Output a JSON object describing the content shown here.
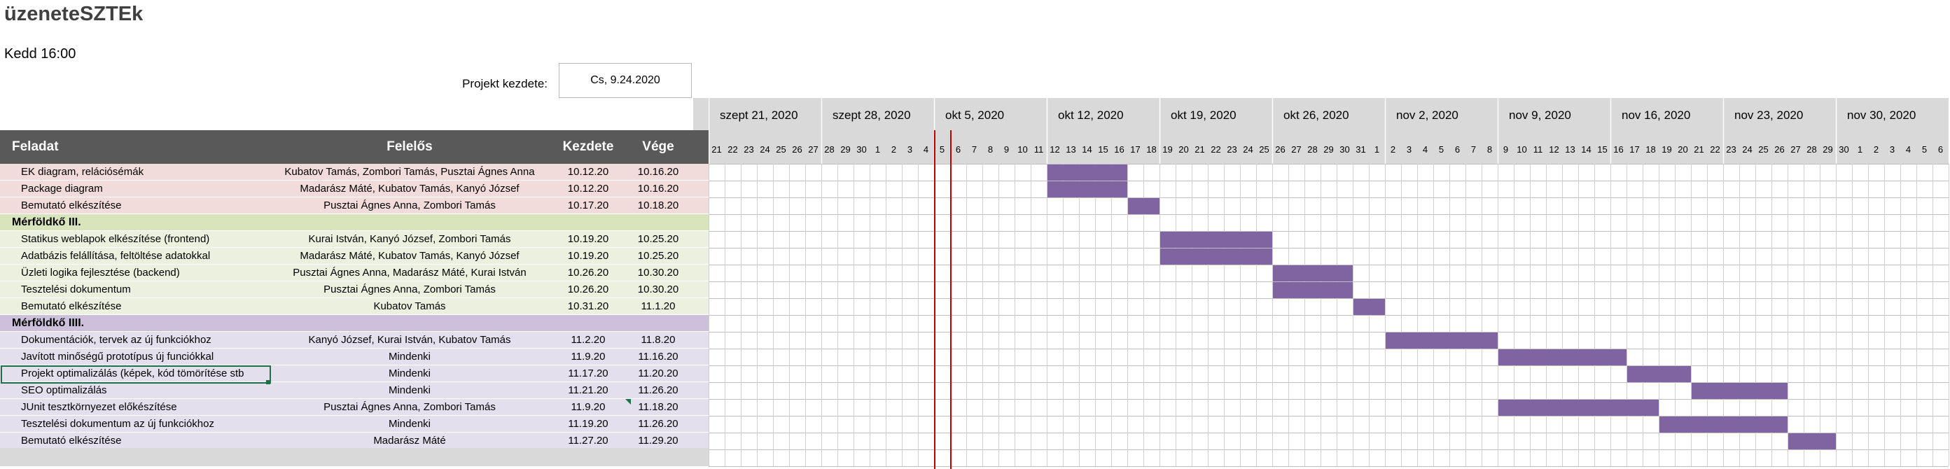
{
  "project": {
    "title": "üzeneteSZTEk",
    "clock": "Kedd 16:00",
    "start_label": "Projekt kezdete:",
    "start_value": "Cs, 9.24.2020"
  },
  "header": {
    "task": "Feladat",
    "resp": "Felelős",
    "start": "Kezdete",
    "end": "Vége"
  },
  "colors": {
    "header_bg": "#595959",
    "row_pink": "#f2dcdb",
    "row_green": "#ebf1de",
    "milestone_green": "#d8e4bc",
    "row_purple": "#e4dfec",
    "milestone_purple": "#ccc0da",
    "bar": "#8064a2",
    "today_line": "#c00000",
    "selection": "#1e7145"
  },
  "rows": [
    {
      "type": "task",
      "color": "pink",
      "task": "EK diagram, relációsémák",
      "resp": "Kubatov Tamás, Zombori Tamás, Pusztai Ágnes Anna",
      "start": "10.12.20",
      "end": "10.16.20",
      "bar": [
        "2020-10-12",
        "2020-10-16"
      ]
    },
    {
      "type": "task",
      "color": "pink",
      "task": "Package diagram",
      "resp": "Madarász Máté, Kubatov Tamás, Kanyó József",
      "start": "10.12.20",
      "end": "10.16.20",
      "bar": [
        "2020-10-12",
        "2020-10-16"
      ]
    },
    {
      "type": "task",
      "color": "pink",
      "task": "Bemutató elkészítése",
      "resp": "Pusztai Ágnes Anna, Zombori Tamás",
      "start": "10.17.20",
      "end": "10.18.20",
      "bar": [
        "2020-10-17",
        "2020-10-18"
      ]
    },
    {
      "type": "milestone",
      "color": "green",
      "task": "Mérföldkő III."
    },
    {
      "type": "task",
      "color": "green",
      "task": "Statikus weblapok elkészítése (frontend)",
      "resp": "Kurai István, Kanyó József, Zombori Tamás",
      "start": "10.19.20",
      "end": "10.25.20",
      "bar": [
        "2020-10-19",
        "2020-10-25"
      ]
    },
    {
      "type": "task",
      "color": "green",
      "task": "Adatbázis felállítása, feltöltése adatokkal",
      "resp": "Madarász Máté, Kubatov Tamás, Kanyó József",
      "start": "10.19.20",
      "end": "10.25.20",
      "bar": [
        "2020-10-19",
        "2020-10-25"
      ]
    },
    {
      "type": "task",
      "color": "green",
      "task": "Üzleti logika fejlesztése (backend)",
      "resp": "Pusztai Ágnes Anna, Madarász Máté, Kurai István",
      "start": "10.26.20",
      "end": "10.30.20",
      "bar": [
        "2020-10-26",
        "2020-10-30"
      ]
    },
    {
      "type": "task",
      "color": "green",
      "task": "Tesztelési dokumentum",
      "resp": "Pusztai Ágnes Anna, Zombori Tamás",
      "start": "10.26.20",
      "end": "10.30.20",
      "bar": [
        "2020-10-26",
        "2020-10-30"
      ]
    },
    {
      "type": "task",
      "color": "green",
      "task": "Bemutató elkészítése",
      "resp": "Kubatov Tamás",
      "start": "10.31.20",
      "end": "11.1.20",
      "bar": [
        "2020-10-31",
        "2020-11-01"
      ]
    },
    {
      "type": "milestone",
      "color": "purple",
      "task": "Mérföldkő IIII."
    },
    {
      "type": "task",
      "color": "purple",
      "task": "Dokumentációk, tervek az új funkciókhoz",
      "resp": "Kanyó József, Kurai István, Kubatov Tamás",
      "start": "11.2.20",
      "end": "11.8.20",
      "bar": [
        "2020-11-02",
        "2020-11-08"
      ]
    },
    {
      "type": "task",
      "color": "purple",
      "task": "Javított minőségű prototípus új funciókkal",
      "resp": "Mindenki",
      "start": "11.9.20",
      "end": "11.16.20",
      "bar": [
        "2020-11-09",
        "2020-11-16"
      ]
    },
    {
      "type": "task",
      "color": "purple",
      "task": "Projekt optimalizálás (képek, kód tömörítése stb",
      "resp": "Mindenki",
      "start": "11.17.20",
      "end": "11.20.20",
      "bar": [
        "2020-11-17",
        "2020-11-20"
      ]
    },
    {
      "type": "task",
      "color": "purple",
      "task": "SEO optimalizálás",
      "resp": "Mindenki",
      "start": "11.21.20",
      "end": "11.26.20",
      "bar": [
        "2020-11-21",
        "2020-11-26"
      ]
    },
    {
      "type": "task",
      "color": "purple",
      "task": "JUnit tesztkörnyezet előkészítése",
      "resp": "Pusztai Ágnes Anna, Zombori Tamás",
      "start": "11.9.20",
      "end": "11.18.20",
      "bar": [
        "2020-11-09",
        "2020-11-18"
      ]
    },
    {
      "type": "task",
      "color": "purple",
      "task": "Tesztelési dokumentum az új funkciókhoz",
      "resp": "Mindenki",
      "start": "11.19.20",
      "end": "11.26.20",
      "bar": [
        "2020-11-19",
        "2020-11-26"
      ]
    },
    {
      "type": "task",
      "color": "purple",
      "task": "Bemutató elkészítése",
      "resp": "Madarász Máté",
      "start": "11.27.20",
      "end": "11.29.20",
      "bar": [
        "2020-11-27",
        "2020-11-29"
      ]
    }
  ],
  "timeline": {
    "weeks": [
      "szept 21, 2020",
      "szept 28, 2020",
      "okt 5, 2020",
      "okt 12, 2020",
      "okt 19, 2020",
      "okt 26, 2020",
      "nov 2, 2020",
      "nov 9, 2020",
      "nov 16, 2020",
      "nov 23, 2020",
      "nov 30, 2020"
    ],
    "days": [
      "21",
      "22",
      "23",
      "24",
      "25",
      "26",
      "27",
      "28",
      "29",
      "30",
      "1",
      "2",
      "3",
      "4",
      "5",
      "6",
      "7",
      "8",
      "9",
      "10",
      "11",
      "12",
      "13",
      "14",
      "15",
      "16",
      "17",
      "18",
      "19",
      "20",
      "21",
      "22",
      "23",
      "24",
      "25",
      "26",
      "27",
      "28",
      "29",
      "30",
      "31",
      "1",
      "2",
      "3",
      "4",
      "5",
      "6",
      "7",
      "8",
      "9",
      "10",
      "11",
      "12",
      "13",
      "14",
      "15",
      "16",
      "17",
      "18",
      "19",
      "20",
      "21",
      "22",
      "23",
      "24",
      "25",
      "26",
      "27",
      "28",
      "29",
      "30",
      "1",
      "2",
      "3",
      "4",
      "5",
      "6"
    ],
    "start_date": "2020-09-21",
    "today_markers": [
      "2020-10-05",
      "2020-10-06"
    ]
  },
  "selected_cell": "Projekt optimalizálás (képek, kód tömörítése stb"
}
